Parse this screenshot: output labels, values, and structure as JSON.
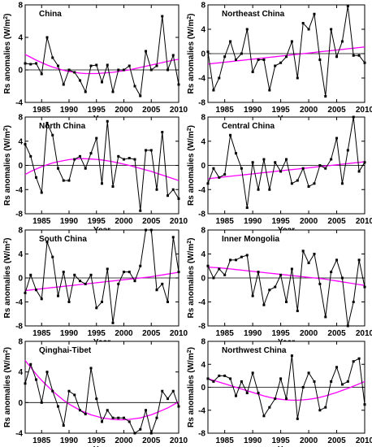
{
  "colors": {
    "series": "#000000",
    "trend": "#ff00ff",
    "zero_line": "#000000",
    "frame": "#000000"
  },
  "x_label": "Year",
  "y_label_text": "Rs anomalies (W/m",
  "y_label_sup": "2",
  "y_label_end": ")",
  "chart_data": [
    {
      "type": "line",
      "title": "China",
      "xlim": [
        1982,
        2010
      ],
      "ylim": [
        -4,
        8
      ],
      "xticks": [
        1985,
        1990,
        1995,
        2000,
        2005,
        2010
      ],
      "yticks": [
        -4,
        0,
        4,
        8
      ],
      "x": [
        1982,
        1983,
        1984,
        1985,
        1986,
        1987,
        1988,
        1989,
        1990,
        1991,
        1992,
        1993,
        1994,
        1995,
        1996,
        1997,
        1998,
        1999,
        2000,
        2001,
        2002,
        2003,
        2004,
        2005,
        2006,
        2007,
        2008,
        2009,
        2010
      ],
      "values": [
        0.8,
        0.7,
        0.8,
        -0.5,
        4.0,
        1.5,
        0.5,
        -1.8,
        0.0,
        -0.3,
        -1.3,
        -2.7,
        0.5,
        0.6,
        -1.5,
        0.6,
        -2.7,
        0.0,
        0.0,
        0.5,
        -2.0,
        -3.2,
        2.3,
        0.0,
        0.5,
        6.6,
        0.0,
        1.8,
        -1.8
      ],
      "trend": [
        1.9,
        1.55,
        1.2,
        0.9,
        0.6,
        0.35,
        0.15,
        -0.05,
        -0.2,
        -0.3,
        -0.4,
        -0.45,
        -0.45,
        -0.45,
        -0.4,
        -0.35,
        -0.3,
        -0.2,
        -0.1,
        0.0,
        0.15,
        0.3,
        0.45,
        0.6,
        0.75,
        0.9,
        1.05,
        1.2,
        1.3
      ]
    },
    {
      "type": "line",
      "title": "Northeast China",
      "xlim": [
        1982,
        2010
      ],
      "ylim": [
        -8,
        8
      ],
      "xticks": [
        1985,
        1990,
        1995,
        2000,
        2005,
        2010
      ],
      "yticks": [
        -8,
        -4,
        0,
        4,
        8
      ],
      "x": [
        1982,
        1983,
        1984,
        1985,
        1986,
        1987,
        1988,
        1989,
        1990,
        1991,
        1992,
        1993,
        1994,
        1995,
        1996,
        1997,
        1998,
        1999,
        2000,
        2001,
        2002,
        2003,
        2004,
        2005,
        2006,
        2007,
        2008,
        2009,
        2010
      ],
      "values": [
        0.3,
        -6.0,
        -4.0,
        -0.5,
        2.0,
        -1.0,
        0.0,
        4.0,
        -3.0,
        -1.0,
        -1.0,
        -6.0,
        -2.0,
        -1.5,
        -0.5,
        2.0,
        -4.0,
        5.0,
        4.0,
        6.5,
        -1.0,
        -7.0,
        4.0,
        -0.5,
        2.0,
        7.8,
        -0.3,
        -0.3,
        -1.5
      ],
      "trend": [
        -1.7,
        -1.6,
        -1.5,
        -1.4,
        -1.3,
        -1.2,
        -1.1,
        -1.0,
        -0.9,
        -0.8,
        -0.7,
        -0.6,
        -0.5,
        -0.4,
        -0.3,
        -0.2,
        -0.1,
        0.0,
        0.1,
        0.2,
        0.3,
        0.4,
        0.5,
        0.6,
        0.7,
        0.8,
        0.9,
        1.0,
        1.1
      ]
    },
    {
      "type": "line",
      "title": "North China",
      "xlim": [
        1982,
        2010
      ],
      "ylim": [
        -8,
        8
      ],
      "xticks": [
        1985,
        1990,
        1995,
        2000,
        2005,
        2010
      ],
      "yticks": [
        -8,
        -4,
        0,
        4,
        8
      ],
      "x": [
        1982,
        1983,
        1984,
        1985,
        1986,
        1987,
        1988,
        1989,
        1990,
        1991,
        1992,
        1993,
        1994,
        1995,
        1996,
        1997,
        1998,
        1999,
        2000,
        2001,
        2002,
        2003,
        2004,
        2005,
        2006,
        2007,
        2008,
        2009,
        2010
      ],
      "values": [
        3.5,
        1.5,
        -2.0,
        -4.5,
        7.0,
        5.0,
        -0.5,
        -2.5,
        -2.5,
        1.0,
        1.5,
        -0.5,
        2.0,
        4.5,
        -3.0,
        7.3,
        -3.5,
        1.5,
        1.0,
        1.2,
        1.0,
        -7.5,
        2.5,
        2.5,
        -4.0,
        5.5,
        -5.0,
        -4.0,
        -5.5
      ],
      "trend": [
        -1.5,
        -1.0,
        -0.6,
        -0.2,
        0.1,
        0.4,
        0.6,
        0.8,
        0.95,
        1.05,
        1.1,
        1.1,
        1.05,
        1.0,
        0.9,
        0.75,
        0.6,
        0.4,
        0.2,
        0.0,
        -0.25,
        -0.5,
        -0.75,
        -1.0,
        -1.3,
        -1.6,
        -1.9,
        -2.2,
        -2.5
      ]
    },
    {
      "type": "line",
      "title": "Central China",
      "xlim": [
        1982,
        2010
      ],
      "ylim": [
        -8,
        8
      ],
      "xticks": [
        1985,
        1990,
        1995,
        2000,
        2005,
        2010
      ],
      "yticks": [
        -8,
        -4,
        0,
        4,
        8
      ],
      "x": [
        1982,
        1983,
        1984,
        1985,
        1986,
        1987,
        1988,
        1989,
        1990,
        1991,
        1992,
        1993,
        1994,
        1995,
        1996,
        1997,
        1998,
        1999,
        2000,
        2001,
        2002,
        2003,
        2004,
        2005,
        2006,
        2007,
        2008,
        2009,
        2010
      ],
      "values": [
        -3.0,
        -0.5,
        -2.0,
        -1.5,
        5.0,
        2.0,
        -0.5,
        -7.0,
        0.5,
        -4.0,
        1.0,
        -4.0,
        0.5,
        -1.0,
        1.0,
        -3.0,
        -2.5,
        -0.5,
        -3.5,
        -3.0,
        0.0,
        -0.5,
        1.0,
        4.5,
        -3.0,
        2.5,
        8.0,
        -1.0,
        0.5
      ],
      "trend": [
        -2.2,
        -2.1,
        -2.0,
        -1.9,
        -1.8,
        -1.7,
        -1.6,
        -1.5,
        -1.4,
        -1.3,
        -1.2,
        -1.1,
        -1.0,
        -0.9,
        -0.8,
        -0.7,
        -0.6,
        -0.5,
        -0.4,
        -0.3,
        -0.2,
        -0.1,
        0.0,
        0.1,
        0.2,
        0.3,
        0.4,
        0.5,
        0.6
      ]
    },
    {
      "type": "line",
      "title": "South China",
      "xlim": [
        1982,
        2010
      ],
      "ylim": [
        -8,
        8
      ],
      "xticks": [
        1985,
        1990,
        1995,
        2000,
        2005,
        2010
      ],
      "yticks": [
        -8,
        -4,
        0,
        4,
        8
      ],
      "x": [
        1982,
        1983,
        1984,
        1985,
        1986,
        1987,
        1988,
        1989,
        1990,
        1991,
        1992,
        1993,
        1994,
        1995,
        1996,
        1997,
        1998,
        1999,
        2000,
        2001,
        2002,
        2003,
        2004,
        2005,
        2006,
        2007,
        2008,
        2009,
        2010
      ],
      "values": [
        -2.5,
        0.5,
        -2.0,
        -3.5,
        6.0,
        3.5,
        -3.0,
        1.0,
        -4.0,
        0.5,
        -0.5,
        -1.0,
        0.5,
        -5.0,
        -4.0,
        1.5,
        -7.5,
        -1.0,
        1.0,
        1.0,
        -0.5,
        2.0,
        8.0,
        8.0,
        -2.0,
        -1.0,
        -4.0,
        6.8,
        1.0
      ],
      "trend": [
        -2.1,
        -2.0,
        -1.9,
        -1.8,
        -1.7,
        -1.6,
        -1.5,
        -1.4,
        -1.3,
        -1.2,
        -1.1,
        -1.0,
        -0.9,
        -0.8,
        -0.7,
        -0.6,
        -0.5,
        -0.4,
        -0.3,
        -0.2,
        -0.1,
        0.0,
        0.1,
        0.2,
        0.35,
        0.5,
        0.65,
        0.8,
        0.95
      ]
    },
    {
      "type": "line",
      "title": "Inner Mongolia",
      "xlim": [
        1982,
        2010
      ],
      "ylim": [
        -8,
        8
      ],
      "xticks": [
        1985,
        1990,
        1995,
        2000,
        2005,
        2010
      ],
      "yticks": [
        -8,
        -4,
        0,
        4,
        8
      ],
      "x": [
        1982,
        1983,
        1984,
        1985,
        1986,
        1987,
        1988,
        1989,
        1990,
        1991,
        1992,
        1993,
        1994,
        1995,
        1996,
        1997,
        1998,
        1999,
        2000,
        2001,
        2002,
        2003,
        2004,
        2005,
        2006,
        2007,
        2008,
        2009,
        2010
      ],
      "values": [
        2.0,
        0.0,
        1.5,
        0.5,
        3.0,
        3.0,
        3.5,
        3.8,
        -3.0,
        1.0,
        -4.5,
        -2.0,
        -1.5,
        0.5,
        -4.0,
        1.5,
        -5.5,
        4.5,
        2.5,
        4.0,
        -1.0,
        -6.5,
        1.0,
        3.0,
        0.0,
        -8.0,
        -4.0,
        3.0,
        -1.5
      ],
      "trend": [
        1.8,
        1.75,
        1.7,
        1.6,
        1.5,
        1.4,
        1.3,
        1.2,
        1.1,
        1.0,
        0.9,
        0.8,
        0.7,
        0.6,
        0.5,
        0.4,
        0.3,
        0.2,
        0.1,
        0.0,
        -0.1,
        -0.2,
        -0.35,
        -0.5,
        -0.65,
        -0.8,
        -0.95,
        -1.1,
        -1.25
      ]
    },
    {
      "type": "line",
      "title": "Qinghai-Tibet",
      "xlim": [
        1982,
        2010
      ],
      "ylim": [
        -4,
        8
      ],
      "xticks": [
        1985,
        1990,
        1995,
        2000,
        2005,
        2010
      ],
      "yticks": [
        -4,
        0,
        4,
        8
      ],
      "x": [
        1982,
        1983,
        1984,
        1985,
        1986,
        1987,
        1988,
        1989,
        1990,
        1991,
        1992,
        1993,
        1994,
        1995,
        1996,
        1997,
        1998,
        1999,
        2000,
        2001,
        2002,
        2003,
        2004,
        2005,
        2006,
        2007,
        2008,
        2009,
        2010
      ],
      "values": [
        2.5,
        5.0,
        3.0,
        0.0,
        4.0,
        1.5,
        -0.5,
        -3.0,
        1.5,
        1.0,
        -1.0,
        -1.5,
        4.5,
        0.5,
        -2.5,
        -1.0,
        -2.0,
        -2.0,
        -2.0,
        -2.5,
        -4.0,
        -3.5,
        -1.0,
        -4.0,
        -2.0,
        1.5,
        0.5,
        1.5,
        -0.5
      ],
      "trend": [
        5.5,
        4.6,
        3.7,
        2.9,
        2.2,
        1.5,
        0.9,
        0.3,
        -0.2,
        -0.6,
        -1.0,
        -1.3,
        -1.6,
        -1.8,
        -2.0,
        -2.1,
        -2.2,
        -2.25,
        -2.25,
        -2.2,
        -2.1,
        -2.0,
        -1.8,
        -1.6,
        -1.3,
        -1.0,
        -0.7,
        -0.3,
        0.1
      ]
    },
    {
      "type": "line",
      "title": "Northwest China",
      "xlim": [
        1982,
        2010
      ],
      "ylim": [
        -8,
        8
      ],
      "xticks": [
        1985,
        1990,
        1995,
        2000,
        2005,
        2010
      ],
      "yticks": [
        -8,
        -4,
        0,
        4,
        8
      ],
      "x": [
        1982,
        1983,
        1984,
        1985,
        1986,
        1987,
        1988,
        1989,
        1990,
        1991,
        1992,
        1993,
        1994,
        1995,
        1996,
        1997,
        1998,
        1999,
        2000,
        2001,
        2002,
        2003,
        2004,
        2005,
        2006,
        2007,
        2008,
        2009,
        2010
      ],
      "values": [
        1.5,
        1.0,
        2.0,
        2.0,
        1.5,
        -1.5,
        1.0,
        -1.0,
        2.5,
        -1.0,
        -5.0,
        -3.5,
        -2.0,
        1.5,
        -2.0,
        5.5,
        -5.5,
        0.0,
        2.5,
        1.0,
        -4.0,
        -3.5,
        1.0,
        3.5,
        0.5,
        1.0,
        4.5,
        5.0,
        -3.0
      ],
      "trend": [
        1.5,
        1.2,
        0.9,
        0.6,
        0.3,
        0.0,
        -0.3,
        -0.6,
        -0.9,
        -1.2,
        -1.5,
        -1.75,
        -1.95,
        -2.1,
        -2.2,
        -2.25,
        -2.25,
        -2.2,
        -2.1,
        -1.95,
        -1.75,
        -1.5,
        -1.2,
        -0.9,
        -0.55,
        -0.2,
        0.2,
        0.6,
        1.0
      ]
    }
  ]
}
